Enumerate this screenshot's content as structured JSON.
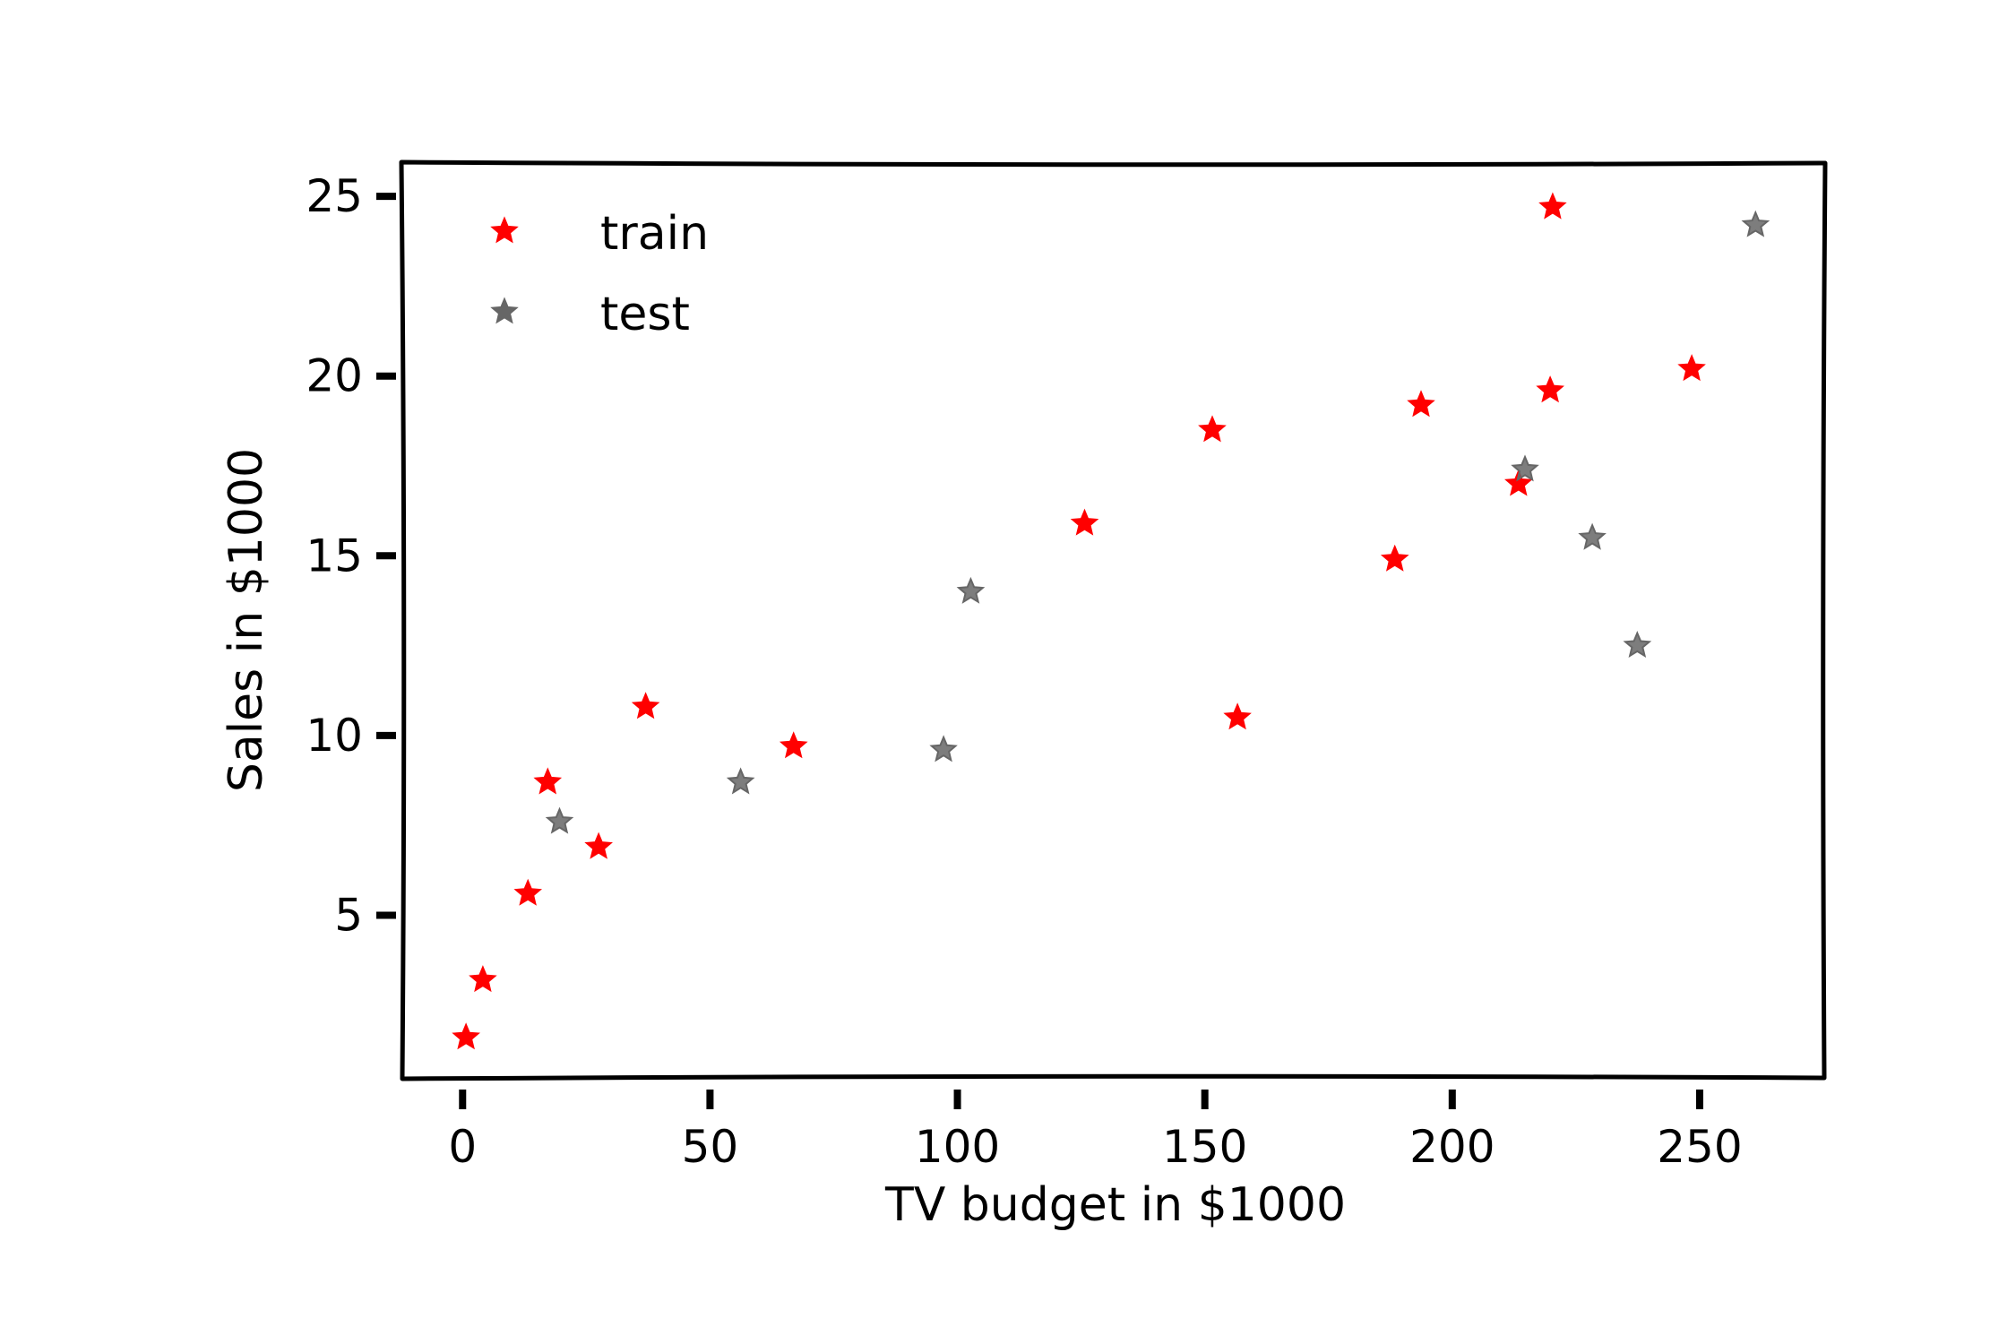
{
  "chart_data": {
    "type": "scatter",
    "xlabel": "TV budget in $1000",
    "ylabel": "Sales in $1000",
    "xlim": [
      -12,
      275
    ],
    "ylim": [
      0.5,
      25.9
    ],
    "xticks": [
      0,
      50,
      100,
      150,
      200,
      250
    ],
    "yticks": [
      5,
      10,
      15,
      20,
      25
    ],
    "legend_position": "top-left",
    "grid": false,
    "series": [
      {
        "name": "train",
        "color": "#ff0000",
        "marker": "star",
        "points": [
          {
            "x": 0.7,
            "y": 1.6
          },
          {
            "x": 4.1,
            "y": 3.2
          },
          {
            "x": 13.2,
            "y": 5.6
          },
          {
            "x": 17.2,
            "y": 8.7
          },
          {
            "x": 27.5,
            "y": 6.9
          },
          {
            "x": 37.0,
            "y": 10.8
          },
          {
            "x": 66.9,
            "y": 9.7
          },
          {
            "x": 125.7,
            "y": 15.9
          },
          {
            "x": 151.5,
            "y": 18.5
          },
          {
            "x": 156.6,
            "y": 10.5
          },
          {
            "x": 188.4,
            "y": 14.9
          },
          {
            "x": 193.7,
            "y": 19.2
          },
          {
            "x": 213.4,
            "y": 17.0
          },
          {
            "x": 219.8,
            "y": 19.6
          },
          {
            "x": 220.3,
            "y": 24.7
          },
          {
            "x": 248.4,
            "y": 20.2
          }
        ]
      },
      {
        "name": "test",
        "color": "#666666",
        "marker": "star",
        "points": [
          {
            "x": 19.6,
            "y": 7.6
          },
          {
            "x": 56.2,
            "y": 8.7
          },
          {
            "x": 97.2,
            "y": 9.6
          },
          {
            "x": 102.7,
            "y": 14.0
          },
          {
            "x": 214.7,
            "y": 17.4
          },
          {
            "x": 228.3,
            "y": 15.5
          },
          {
            "x": 237.4,
            "y": 12.5
          },
          {
            "x": 261.3,
            "y": 24.2
          }
        ]
      }
    ]
  }
}
